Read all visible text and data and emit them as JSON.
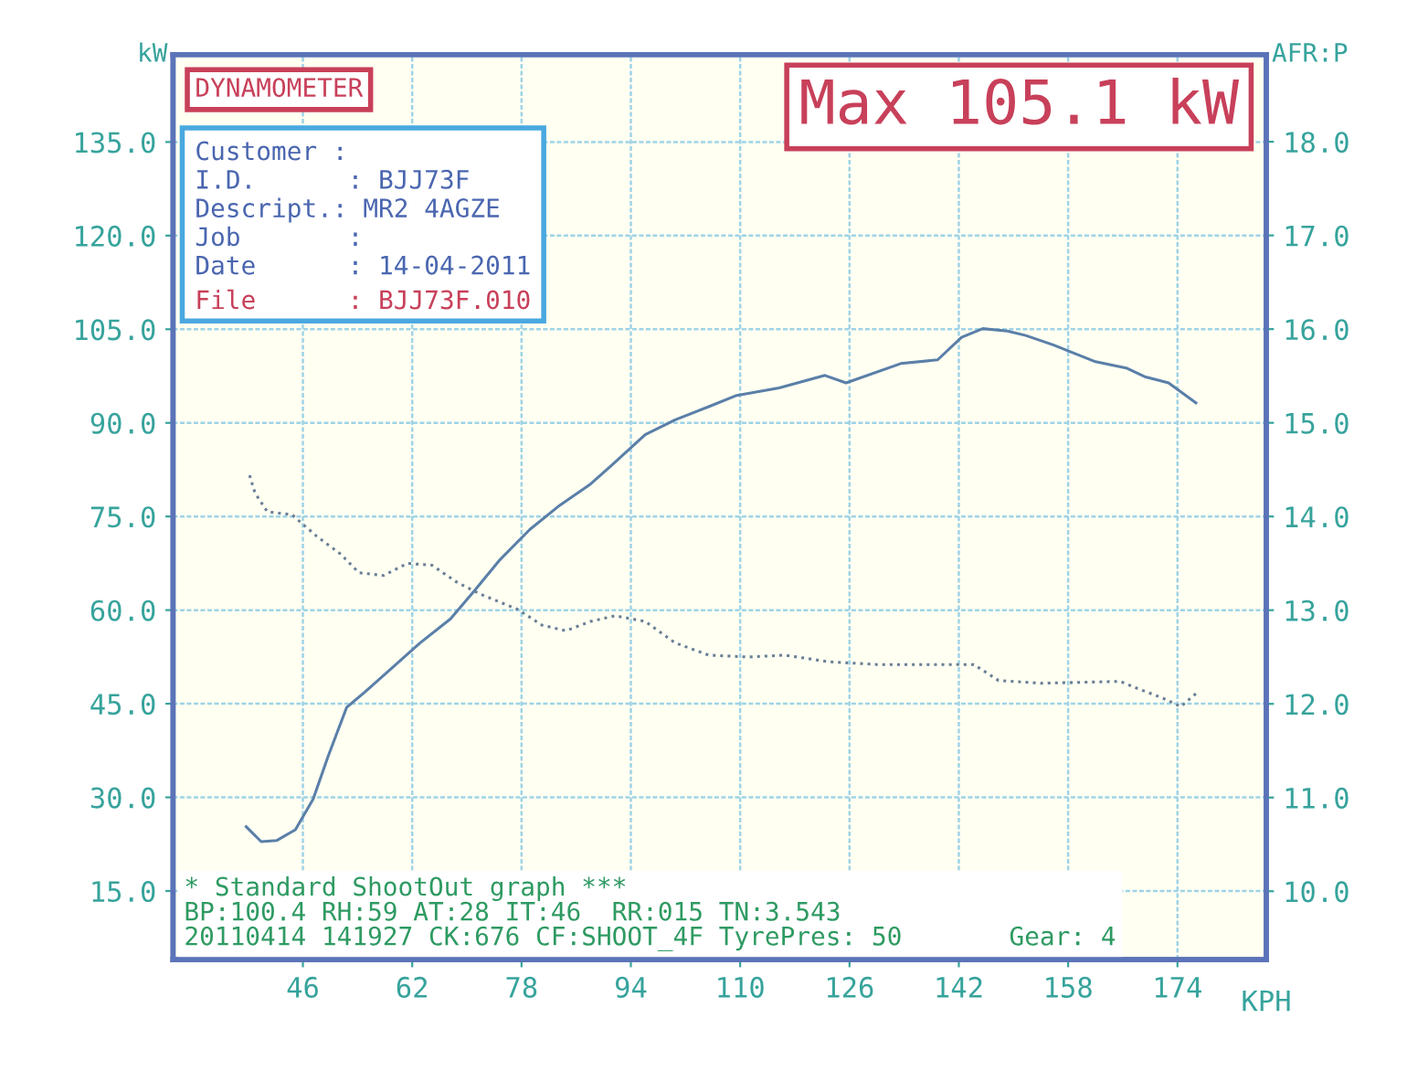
{
  "chart_data": {
    "type": "line",
    "xlabel": "KPH",
    "ylabel": "kW",
    "y2label": "AFR:P",
    "xlim": [
      27,
      187
    ],
    "xticks": [
      46,
      62,
      78,
      94,
      110,
      126,
      142,
      158,
      174
    ],
    "ylim": [
      4,
      149
    ],
    "yticks": [
      {
        "value": 15,
        "label": "15.0"
      },
      {
        "value": 30,
        "label": "30.0"
      },
      {
        "value": 45,
        "label": "45.0"
      },
      {
        "value": 60,
        "label": "60.0"
      },
      {
        "value": 75,
        "label": "75.0"
      },
      {
        "value": 90,
        "label": "90.0"
      },
      {
        "value": 105,
        "label": "105.0"
      },
      {
        "value": 120,
        "label": "120.0"
      },
      {
        "value": 135,
        "label": "135.0"
      }
    ],
    "y2lim": [
      9.27,
      18.93
    ],
    "y2ticks": [
      {
        "value": 10,
        "label": "10.0"
      },
      {
        "value": 11,
        "label": "11.0"
      },
      {
        "value": 12,
        "label": "12.0"
      },
      {
        "value": 13,
        "label": "13.0"
      },
      {
        "value": 14,
        "label": "14.0"
      },
      {
        "value": 15,
        "label": "15.0"
      },
      {
        "value": 16,
        "label": "16.0"
      },
      {
        "value": 17,
        "label": "17.0"
      },
      {
        "value": 18,
        "label": "18.0"
      }
    ],
    "grid": true,
    "legend": false,
    "series": [
      {
        "color": "#5a7fa8",
        "line_style": "solid",
        "x": [
          37.7,
          39.9,
          42.2,
          44.9,
          47.5,
          49.7,
          52.4,
          55.1,
          58.6,
          63.1,
          67.6,
          71.1,
          74.7,
          79.2,
          83.6,
          88.1,
          91.6,
          96.1,
          100.5,
          105.4,
          109.5,
          115.7,
          122.4,
          125.5,
          133.5,
          138.9,
          142.4,
          145.5,
          149.1,
          151.8,
          155.8,
          162.0,
          166.5,
          169.2,
          172.7,
          176.7
        ],
        "values": [
          25.3,
          22.9,
          23.1,
          24.8,
          29.7,
          36.6,
          44.4,
          46.9,
          50.3,
          54.7,
          58.6,
          63.1,
          67.9,
          72.9,
          76.8,
          80.2,
          83.6,
          88.1,
          90.5,
          92.6,
          94.4,
          95.6,
          97.6,
          96.4,
          99.5,
          100.1,
          103.7,
          105.1,
          104.7,
          104.0,
          102.5,
          99.8,
          98.8,
          97.4,
          96.4,
          93.2
        ]
      },
      {
        "color": "#6a7f95",
        "line_style": "dotted",
        "axis": "y2",
        "x": [
          38.2,
          39.0,
          40.8,
          44.4,
          48.0,
          51.5,
          54.2,
          57.8,
          61.3,
          64.9,
          68.5,
          72.0,
          77.4,
          81.0,
          84.5,
          88.1,
          91.7,
          96.1,
          100.5,
          105.4,
          111.2,
          116.6,
          122.8,
          130.0,
          138.9,
          144.2,
          147.8,
          154.0,
          165.6,
          168.3,
          171.9,
          174.5,
          176.7
        ],
        "values": [
          14.44,
          14.25,
          14.05,
          14.02,
          13.79,
          13.6,
          13.4,
          13.37,
          13.5,
          13.48,
          13.3,
          13.17,
          13.01,
          12.84,
          12.78,
          12.88,
          12.94,
          12.88,
          12.65,
          12.52,
          12.5,
          12.52,
          12.45,
          12.42,
          12.42,
          12.42,
          12.25,
          12.22,
          12.24,
          12.16,
          12.06,
          11.97,
          12.11
        ]
      }
    ],
    "annotations": [
      "DYNAMOMETER",
      "Customer :",
      "I.D.      : BJJ73F",
      "Descript.: MR2 4AGZE",
      "Job       :",
      "Date      : 14-04-2011",
      "File      : BJJ73F.010",
      "Max 105.1 kW",
      "* Standard ShootOut graph ***",
      "BP:100.4 RH:59 AT:28 IT:46  RR:015 TN:3.543",
      "20110414 141927 CK:676 CF:SHOOT_4F TyrePres: 50       Gear: 4"
    ]
  }
}
